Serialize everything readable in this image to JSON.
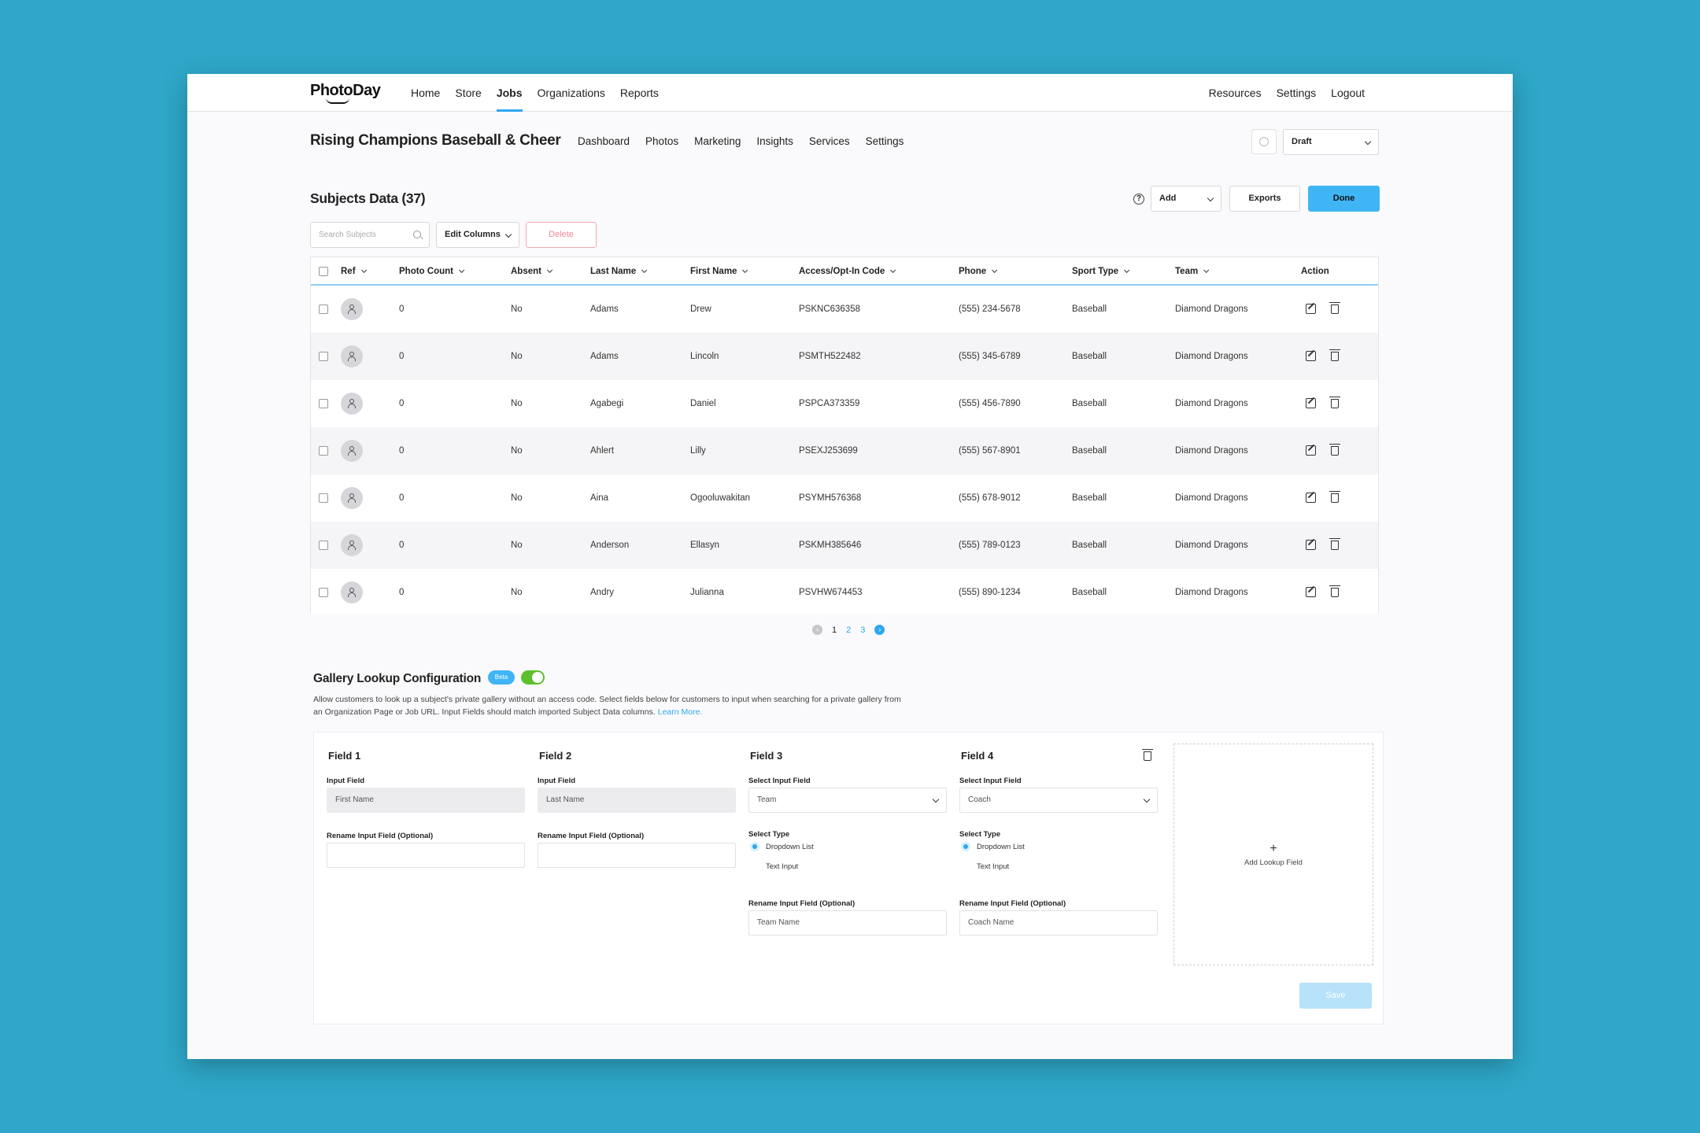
{
  "brand": "PhotoDay",
  "nav": {
    "left": [
      "Home",
      "Store",
      "Jobs",
      "Organizations",
      "Reports"
    ],
    "active": "Jobs",
    "right": [
      "Resources",
      "Settings",
      "Logout"
    ]
  },
  "job": {
    "title": "Rising Champions Baseball & Cheer",
    "subnav": [
      "Dashboard",
      "Photos",
      "Marketing",
      "Insights",
      "Services",
      "Settings"
    ],
    "status": "Draft"
  },
  "subjects": {
    "title": "Subjects Data (37)",
    "add_label": "Add",
    "exports_label": "Exports",
    "done_label": "Done",
    "search_placeholder": "Search Subjects",
    "edit_columns_label": "Edit Columns",
    "delete_label": "Delete",
    "columns": [
      "Ref",
      "Photo Count",
      "Absent",
      "Last Name",
      "First Name",
      "Access/Opt-In Code",
      "Phone",
      "Sport Type",
      "Team",
      "Action"
    ],
    "rows": [
      {
        "photo_count": "0",
        "absent": "No",
        "last": "Adams",
        "first": "Drew",
        "code": "PSKNC636358",
        "phone": "(555) 234-5678",
        "sport": "Baseball",
        "team": "Diamond Dragons"
      },
      {
        "photo_count": "0",
        "absent": "No",
        "last": "Adams",
        "first": "Lincoln",
        "code": "PSMTH522482",
        "phone": "(555) 345-6789",
        "sport": "Baseball",
        "team": "Diamond Dragons"
      },
      {
        "photo_count": "0",
        "absent": "No",
        "last": "Agabegi",
        "first": "Daniel",
        "code": "PSPCA373359",
        "phone": "(555) 456-7890",
        "sport": "Baseball",
        "team": "Diamond Dragons"
      },
      {
        "photo_count": "0",
        "absent": "No",
        "last": "Ahlert",
        "first": "Lilly",
        "code": "PSEXJ253699",
        "phone": "(555) 567-8901",
        "sport": "Baseball",
        "team": "Diamond Dragons"
      },
      {
        "photo_count": "0",
        "absent": "No",
        "last": "Aina",
        "first": "Ogooluwakitan",
        "code": "PSYMH576368",
        "phone": "(555) 678-9012",
        "sport": "Baseball",
        "team": "Diamond Dragons"
      },
      {
        "photo_count": "0",
        "absent": "No",
        "last": "Anderson",
        "first": "Ellasyn",
        "code": "PSKMH385646",
        "phone": "(555) 789-0123",
        "sport": "Baseball",
        "team": "Diamond Dragons"
      },
      {
        "photo_count": "0",
        "absent": "No",
        "last": "Andry",
        "first": "Julianna",
        "code": "PSVHW674453",
        "phone": "(555) 890-1234",
        "sport": "Baseball",
        "team": "Diamond Dragons"
      }
    ]
  },
  "pagination": {
    "pages": [
      "1",
      "2",
      "3"
    ],
    "current": "1"
  },
  "gallery": {
    "title": "Gallery Lookup Configuration",
    "badge": "Beta",
    "enabled": true,
    "description": "Allow customers to look up a subject's private gallery without an access code. Select fields below for customers to input when searching for a private gallery from an Organization Page or Job URL. Input Fields should match imported Subject Data columns.",
    "learn_more": "Learn More.",
    "fields": [
      {
        "head": "Field 1",
        "input_label": "Input Field",
        "input_value": "First Name",
        "rename_label": "Rename Input Field (Optional)",
        "rename_value": ""
      },
      {
        "head": "Field 2",
        "input_label": "Input Field",
        "input_value": "Last Name",
        "rename_label": "Rename Input Field (Optional)",
        "rename_value": ""
      },
      {
        "head": "Field 3",
        "input_label": "Select Input Field",
        "input_value": "Team",
        "type_label": "Select Type",
        "type_options": [
          "Dropdown List",
          "Text Input"
        ],
        "type_selected": "Dropdown List",
        "rename_label": "Rename Input Field (Optional)",
        "rename_value": "Team Name"
      },
      {
        "head": "Field 4",
        "input_label": "Select Input Field",
        "input_value": "Coach",
        "type_label": "Select Type",
        "type_options": [
          "Dropdown List",
          "Text Input"
        ],
        "type_selected": "Dropdown List",
        "rename_label": "Rename Input Field (Optional)",
        "rename_value": "Coach Name"
      }
    ],
    "add_field_label": "Add Lookup Field",
    "save_label": "Save"
  },
  "colors": {
    "accent": "#2ea7f0",
    "background": "#2ea7c8",
    "toggle_on": "#5cc02e",
    "delete": "#f08a98"
  }
}
